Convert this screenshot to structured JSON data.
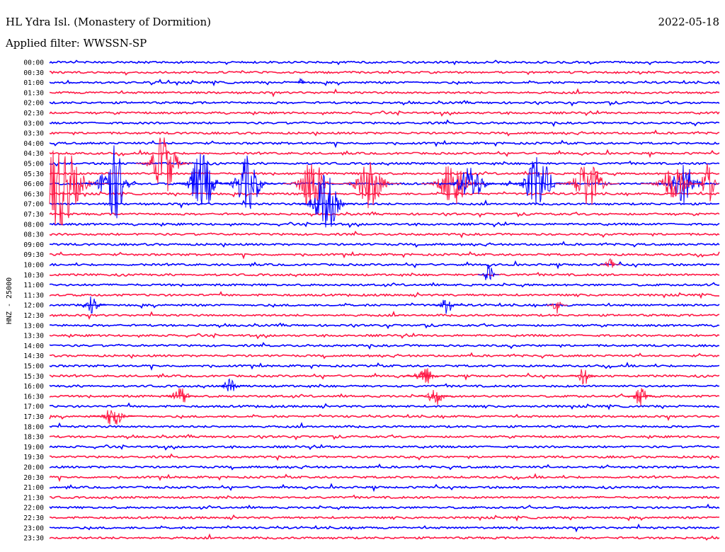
{
  "header": {
    "station": "HL Ydra Isl. (Monastery of Dormition)",
    "filter": "Applied filter: WWSSN-SP",
    "date": "2022-05-18"
  },
  "chart_data": {
    "type": "line",
    "title": "HL Ydra Isl. (Monastery of Dormition)",
    "subtitle": "Applied filter: WWSSN-SP",
    "date": "2022-05-18",
    "ylabel": "HNZ - 25000",
    "xlabel": "",
    "grid": false,
    "trace_colors": [
      "#0000ff",
      "#ff1744"
    ],
    "series": [],
    "categories": [
      "00:00",
      "00:30",
      "01:00",
      "01:30",
      "02:00",
      "02:30",
      "03:00",
      "03:30",
      "04:00",
      "04:30",
      "05:00",
      "05:30",
      "06:00",
      "06:30",
      "07:00",
      "07:30",
      "08:00",
      "08:30",
      "09:00",
      "09:30",
      "10:00",
      "10:30",
      "11:00",
      "11:30",
      "12:00",
      "12:30",
      "13:00",
      "13:30",
      "14:00",
      "14:30",
      "15:00",
      "15:30",
      "16:00",
      "16:30",
      "17:00",
      "17:30",
      "18:00",
      "18:30",
      "19:00",
      "19:30",
      "20:00",
      "20:30",
      "21:00",
      "21:30",
      "22:00",
      "22:30",
      "23:00",
      "23:30"
    ]
  }
}
